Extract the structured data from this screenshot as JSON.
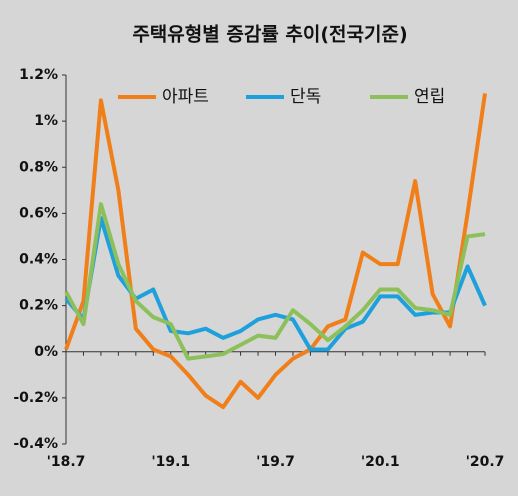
{
  "chart_data": {
    "type": "line",
    "title": "주택유형별 증감률 추이(전국기준)",
    "categories": [
      "'18.7",
      null,
      null,
      null,
      null,
      null,
      "'19.1",
      null,
      null,
      null,
      null,
      null,
      "'19.7",
      null,
      null,
      null,
      null,
      null,
      "'20.1",
      null,
      null,
      null,
      null,
      null,
      "'20.7"
    ],
    "series": [
      {
        "name": "아파트",
        "color": "#f07f1a",
        "values": [
          0.01,
          0.22,
          1.09,
          0.7,
          0.1,
          0.01,
          -0.02,
          -0.1,
          -0.19,
          -0.24,
          -0.13,
          -0.2,
          -0.1,
          -0.03,
          0.01,
          0.11,
          0.14,
          0.43,
          0.38,
          0.38,
          0.74,
          0.25,
          0.11,
          0.6,
          1.12
        ]
      },
      {
        "name": "단독",
        "color": "#1ea0dc",
        "values": [
          0.23,
          0.14,
          0.58,
          0.33,
          0.23,
          0.27,
          0.09,
          0.08,
          0.1,
          0.06,
          0.09,
          0.14,
          0.16,
          0.14,
          0.01,
          0.01,
          0.1,
          0.13,
          0.24,
          0.24,
          0.16,
          0.17,
          0.17,
          0.37,
          0.2
        ]
      },
      {
        "name": "연립",
        "color": "#8dc05a",
        "values": [
          0.26,
          0.12,
          0.64,
          0.38,
          0.22,
          0.15,
          0.12,
          -0.03,
          -0.02,
          -0.01,
          0.03,
          0.07,
          0.06,
          0.18,
          0.12,
          0.05,
          0.11,
          0.18,
          0.27,
          0.27,
          0.19,
          0.18,
          0.16,
          0.5,
          0.51
        ]
      }
    ],
    "ylim": [
      -0.4,
      1.2
    ],
    "yticks": [
      {
        "value": -0.4,
        "label": "-0.4%"
      },
      {
        "value": -0.2,
        "label": "-0.2%"
      },
      {
        "value": 0,
        "label": "0%"
      },
      {
        "value": 0.2,
        "label": "0.2%"
      },
      {
        "value": 0.4,
        "label": "0.4%"
      },
      {
        "value": 0.6,
        "label": "0.6%"
      },
      {
        "value": 0.8,
        "label": "0.8%"
      },
      {
        "value": 1,
        "label": "1%"
      },
      {
        "value": 1.2,
        "label": "1.2%"
      }
    ],
    "legend": "top"
  }
}
